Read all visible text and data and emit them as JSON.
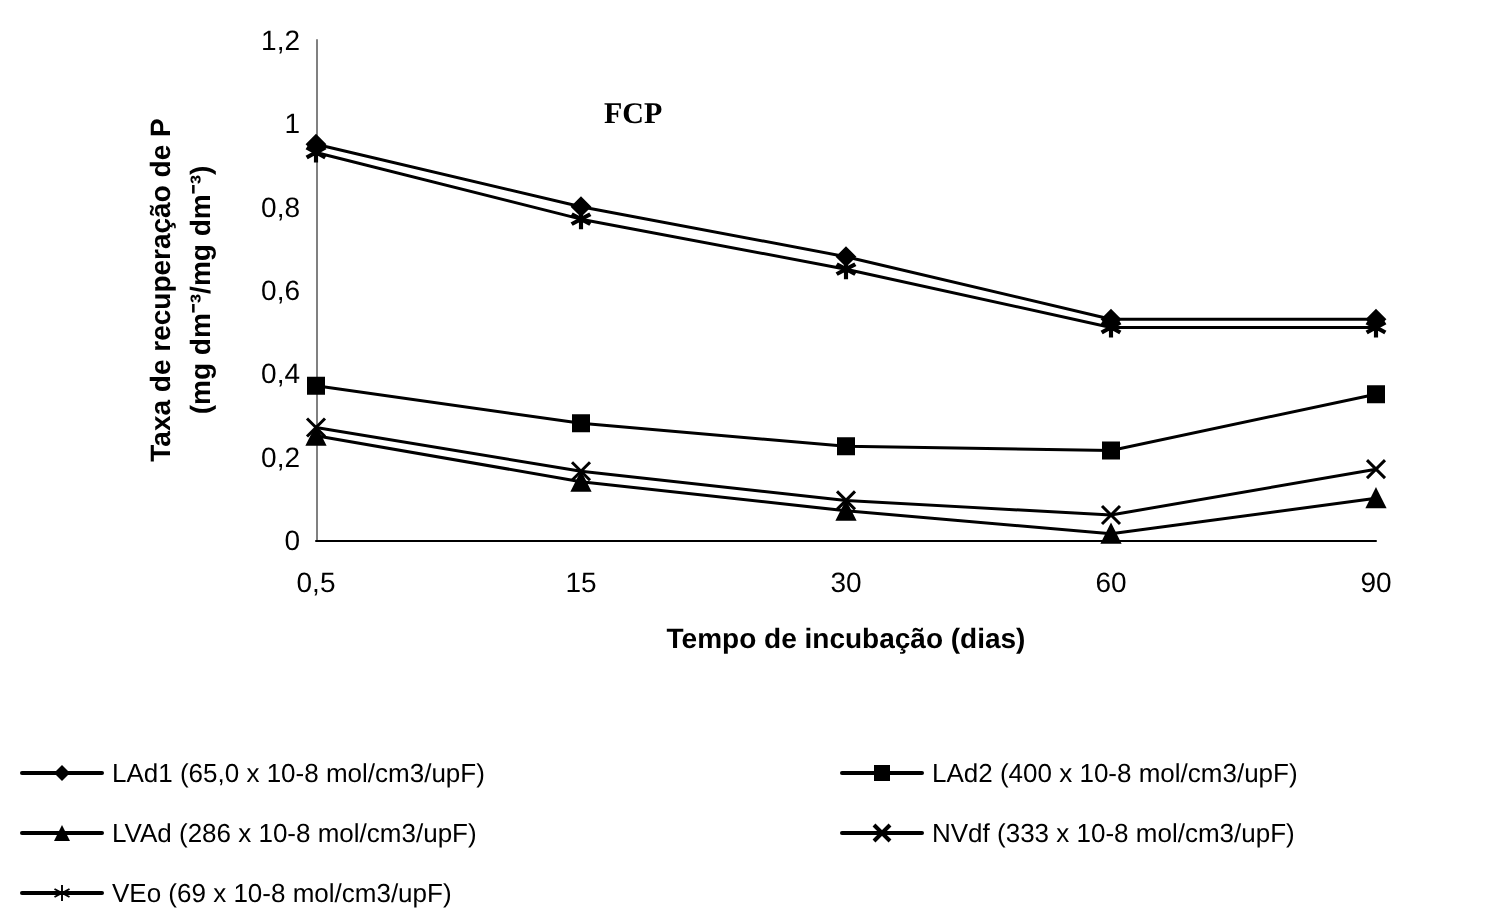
{
  "chart_data": {
    "type": "line",
    "title": "FCP",
    "xlabel": "Tempo de incubação (dias)",
    "ylabel": "Taxa de recuperação de P\n(mg dm⁻³/mg dm⁻³)",
    "categories": [
      "0,5",
      "15",
      "30",
      "60",
      "90"
    ],
    "series": [
      {
        "name": "LAd1 (65,0 x 10-8 mol/cm3/upF)",
        "color": "#000000",
        "marker": "diamond",
        "values": [
          0.95,
          0.8,
          0.68,
          0.53,
          0.53
        ]
      },
      {
        "name": "LAd2 (400 x 10-8 mol/cm3/upF)",
        "color": "#000000",
        "marker": "square",
        "values": [
          0.37,
          0.28,
          0.225,
          0.215,
          0.35
        ]
      },
      {
        "name": "LVAd (286 x 10-8 mol/cm3/upF)",
        "color": "#000000",
        "marker": "triangle",
        "values": [
          0.25,
          0.14,
          0.07,
          0.015,
          0.1
        ]
      },
      {
        "name": "NVdf (333 x 10-8 mol/cm3/upF)",
        "color": "#000000",
        "marker": "cross",
        "values": [
          0.27,
          0.165,
          0.095,
          0.06,
          0.17
        ]
      },
      {
        "name": "VEo (69 x 10-8 mol/cm3/upF)",
        "color": "#000000",
        "marker": "star",
        "values": [
          0.93,
          0.77,
          0.65,
          0.51,
          0.51
        ]
      }
    ],
    "ylim": [
      0,
      1.2
    ],
    "yticks": [
      0,
      {
        "value": 0.2,
        "label": "0,2"
      },
      {
        "value": 0.4,
        "label": "0,4"
      },
      {
        "value": 0.6,
        "label": "0,6"
      },
      {
        "value": 0.8,
        "label": "0,8"
      },
      1,
      {
        "value": 1.2,
        "label": "1,2"
      }
    ],
    "grid": false,
    "legend": "bottom",
    "line_style": "solid"
  }
}
